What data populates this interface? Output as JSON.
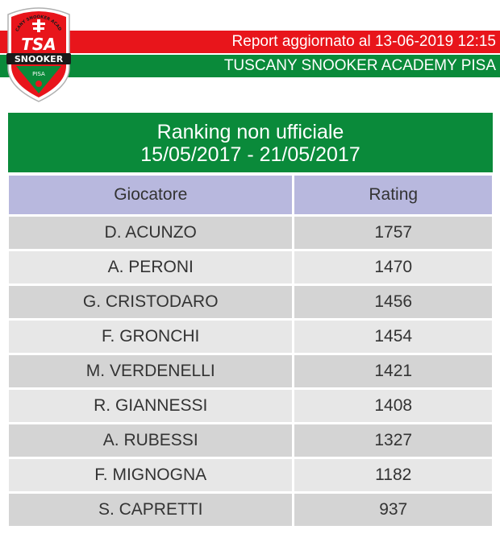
{
  "header": {
    "report_text": "Report aggiornato al 13-06-2019 12:15",
    "academy_name": "TUSCANY SNOOKER ACADEMY PISA"
  },
  "logo": {
    "arc_text": "TUSCANY SNOOKER ACADEMY",
    "mark": "TSA",
    "banner": "SNOOKER",
    "city": "PISA",
    "colors": {
      "red": "#e8151b",
      "green": "#0a8a3a",
      "black": "#1a1a1a"
    }
  },
  "title": {
    "line1": "Ranking non ufficiale",
    "line2": "15/05/2017 - 21/05/2017"
  },
  "table": {
    "headers": [
      "Giocatore",
      "Rating"
    ],
    "rows": [
      {
        "player": "D. ACUNZO",
        "rating": "1757"
      },
      {
        "player": "A. PERONI",
        "rating": "1470"
      },
      {
        "player": "G. CRISTODARO",
        "rating": "1456"
      },
      {
        "player": "F. GRONCHI",
        "rating": "1454"
      },
      {
        "player": "M. VERDENELLI",
        "rating": "1421"
      },
      {
        "player": "R. GIANNESSI",
        "rating": "1408"
      },
      {
        "player": "A. RUBESSI",
        "rating": "1327"
      },
      {
        "player": "F. MIGNOGNA",
        "rating": "1182"
      },
      {
        "player": "S. CAPRETTI",
        "rating": "937"
      }
    ]
  },
  "colors": {
    "header_red": "#e8151b",
    "header_green": "#0a8a3a",
    "table_header": "#b8b8de",
    "row_dark": "#d4d4d4",
    "row_light": "#e7e7e7"
  }
}
